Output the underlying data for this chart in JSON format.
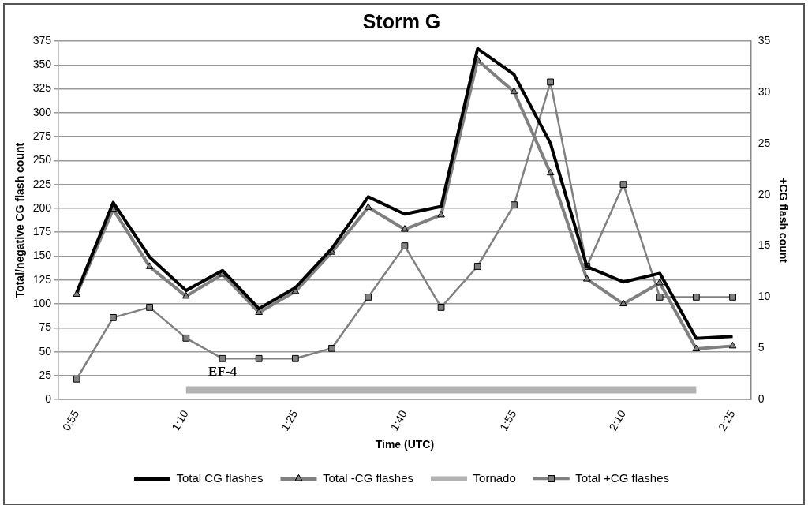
{
  "chart_data": {
    "type": "line",
    "title": "Storm G",
    "xlabel": "Time (UTC)",
    "ylabel": "Total/negative CG flash count",
    "y2label": "+CG flash count",
    "categories": [
      "0:55",
      null,
      null,
      "1:10",
      null,
      null,
      "1:25",
      null,
      null,
      "1:40",
      null,
      null,
      "1:55",
      null,
      null,
      "2:10",
      null,
      null,
      "2:25"
    ],
    "series": [
      {
        "name": "Total CG flashes",
        "color": "#000000",
        "marker": "none",
        "values": [
          112,
          206,
          149,
          114,
          135,
          95,
          117,
          158,
          212,
          194,
          202,
          367,
          340,
          268,
          139,
          123,
          132,
          64,
          66
        ]
      },
      {
        "name": "Total -CG flashes",
        "color": "#808080",
        "marker": "triangle",
        "values": [
          110,
          199,
          139,
          108,
          131,
          91,
          113,
          154,
          201,
          178,
          193,
          355,
          322,
          237,
          126,
          100,
          122,
          53,
          56
        ]
      },
      {
        "name": "Tornado",
        "color": "#b2b2b2",
        "marker": "none",
        "values": [
          null,
          null,
          null,
          10,
          10,
          10,
          10,
          10,
          10,
          10,
          10,
          10,
          10,
          10,
          10,
          10,
          10,
          10,
          null
        ]
      },
      {
        "name": "Total +CG flashes",
        "color": "#808080",
        "marker": "square",
        "axis": "y2",
        "values": [
          2,
          8,
          9,
          6,
          4,
          4,
          4,
          5,
          10,
          15,
          9,
          13,
          19,
          31,
          13,
          21,
          10,
          10,
          10
        ]
      }
    ],
    "ylim": [
      0,
      375
    ],
    "yticks": [
      0,
      25,
      50,
      75,
      100,
      125,
      150,
      175,
      200,
      225,
      250,
      275,
      300,
      325,
      350,
      375
    ],
    "y2lim": [
      0,
      35
    ],
    "y2ticks": [
      0,
      5,
      10,
      15,
      20,
      25,
      30,
      35
    ],
    "annotations": [
      "EF-4"
    ],
    "grid": "y",
    "legend": "bottom"
  }
}
